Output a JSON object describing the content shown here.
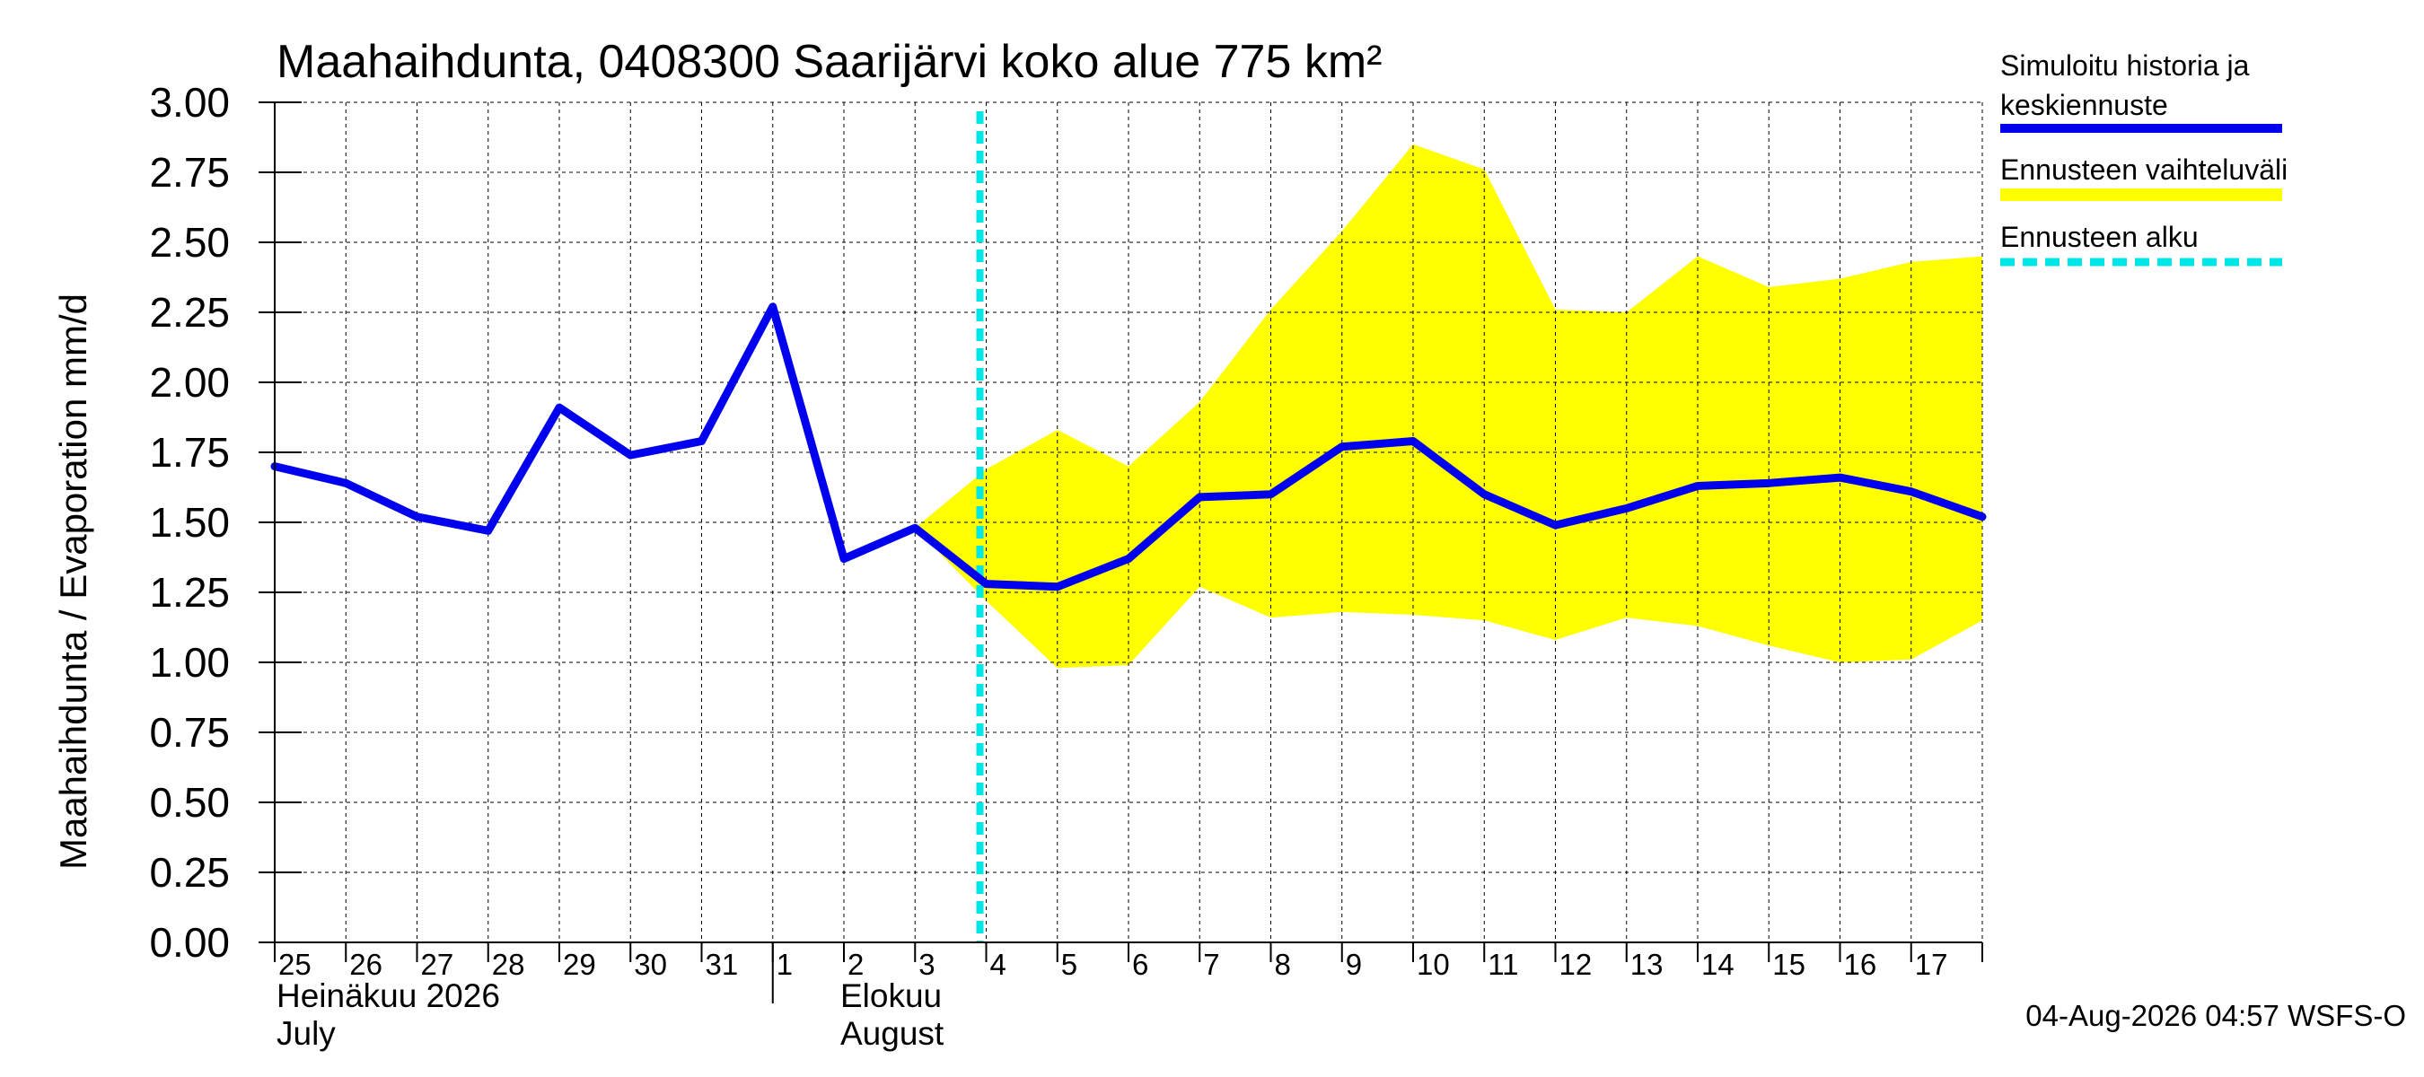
{
  "chart_data": {
    "type": "line",
    "title": "Maahaihdunta, 0408300 Saarijärvi koko alue 775 km²",
    "ylabel": "Maahaihdunta / Evaporation   mm/d",
    "ylim": [
      0,
      3
    ],
    "yticks": [
      "0.00",
      "0.25",
      "0.50",
      "0.75",
      "1.00",
      "1.25",
      "1.50",
      "1.75",
      "2.00",
      "2.25",
      "2.50",
      "2.75",
      "3.00"
    ],
    "xticks": [
      "25",
      "26",
      "27",
      "28",
      "29",
      "30",
      "31",
      "1",
      "2",
      "3",
      "4",
      "5",
      "6",
      "7",
      "8",
      "9",
      "10",
      "11",
      "12",
      "13",
      "14",
      "15",
      "16",
      "17"
    ],
    "month_labels": [
      {
        "fi": "Heinäkuu  2026",
        "en": "July"
      },
      {
        "fi": "Elokuu",
        "en": "August"
      }
    ],
    "grid": true,
    "legend_position": "right",
    "forecast_start": "4",
    "series": [
      {
        "name": "Simuloitu historia ja keskiennuste",
        "color": "#0000ee",
        "values": [
          1.7,
          1.64,
          1.52,
          1.47,
          1.91,
          1.74,
          1.79,
          2.27,
          1.37,
          1.48,
          1.28,
          1.27,
          1.37,
          1.59,
          1.6,
          1.77,
          1.79,
          1.6,
          1.49,
          1.55,
          1.63,
          1.64,
          1.66,
          1.61,
          1.52
        ]
      }
    ],
    "band": {
      "name": "Ennusteen vaihteluväli",
      "color": "#ffff00",
      "start_index": 9,
      "upper": [
        1.48,
        1.69,
        1.83,
        1.7,
        1.93,
        2.26,
        2.54,
        2.85,
        2.76,
        2.26,
        2.25,
        2.45,
        2.34,
        2.37,
        2.43,
        2.45
      ],
      "lower": [
        1.48,
        1.22,
        0.98,
        0.99,
        1.27,
        1.16,
        1.18,
        1.17,
        1.15,
        1.08,
        1.16,
        1.13,
        1.06,
        1.0,
        1.01,
        1.15
      ]
    },
    "forecast_line": {
      "name": "Ennusteen alku",
      "color": "#00e5e5"
    }
  },
  "legend": {
    "series_line1": "Simuloitu historia ja",
    "series_line2": "keskiennuste",
    "band": "Ennusteen vaihteluväli",
    "forecast": "Ennusteen alku"
  },
  "footer": "04-Aug-2026 04:57 WSFS-O"
}
